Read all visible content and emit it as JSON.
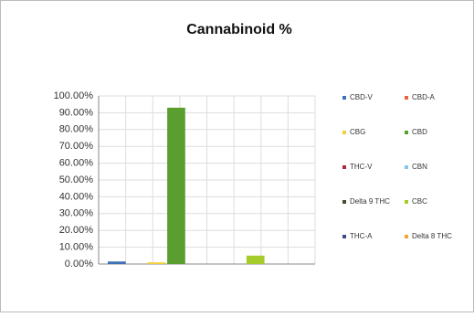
{
  "chart_data": {
    "type": "bar",
    "title": "Cannabinoid %",
    "categories": [
      null
    ],
    "series": [
      {
        "name": "CBD-V",
        "color": "#3f6fb5",
        "values": [
          1.5
        ]
      },
      {
        "name": "CBD-A",
        "color": "#e8643a",
        "values": [
          0
        ]
      },
      {
        "name": "CBG",
        "color": "#f2d13c",
        "values": [
          1
        ]
      },
      {
        "name": "CBD",
        "color": "#5a9e2f",
        "values": [
          93
        ]
      },
      {
        "name": "THC-V",
        "color": "#b0283a",
        "values": [
          0
        ]
      },
      {
        "name": "CBN",
        "color": "#7ec8e3",
        "values": [
          0
        ]
      },
      {
        "name": "Delta 9 THC",
        "color": "#3f4f2a",
        "values": [
          0
        ]
      },
      {
        "name": "CBC",
        "color": "#a6cc2c",
        "values": [
          5
        ]
      },
      {
        "name": "THC-A",
        "color": "#3a4a85",
        "values": [
          0
        ]
      },
      {
        "name": "Delta 8 THC",
        "color": "#f2a33a",
        "values": [
          0
        ]
      }
    ],
    "ylim": [
      0,
      100
    ],
    "yticks": [
      {
        "value": 0,
        "label": "0.00%"
      },
      {
        "value": 10,
        "label": "10.00%"
      },
      {
        "value": 20,
        "label": "20.00%"
      },
      {
        "value": 30,
        "label": "30.00%"
      },
      {
        "value": 40,
        "label": "40.00%"
      },
      {
        "value": 50,
        "label": "50.00%"
      },
      {
        "value": 60,
        "label": "60.00%"
      },
      {
        "value": 70,
        "label": "70.00%"
      },
      {
        "value": 80,
        "label": "80.00%"
      },
      {
        "value": 90,
        "label": "90.00%"
      },
      {
        "value": 100,
        "label": "100.00%"
      }
    ],
    "grid": true
  }
}
